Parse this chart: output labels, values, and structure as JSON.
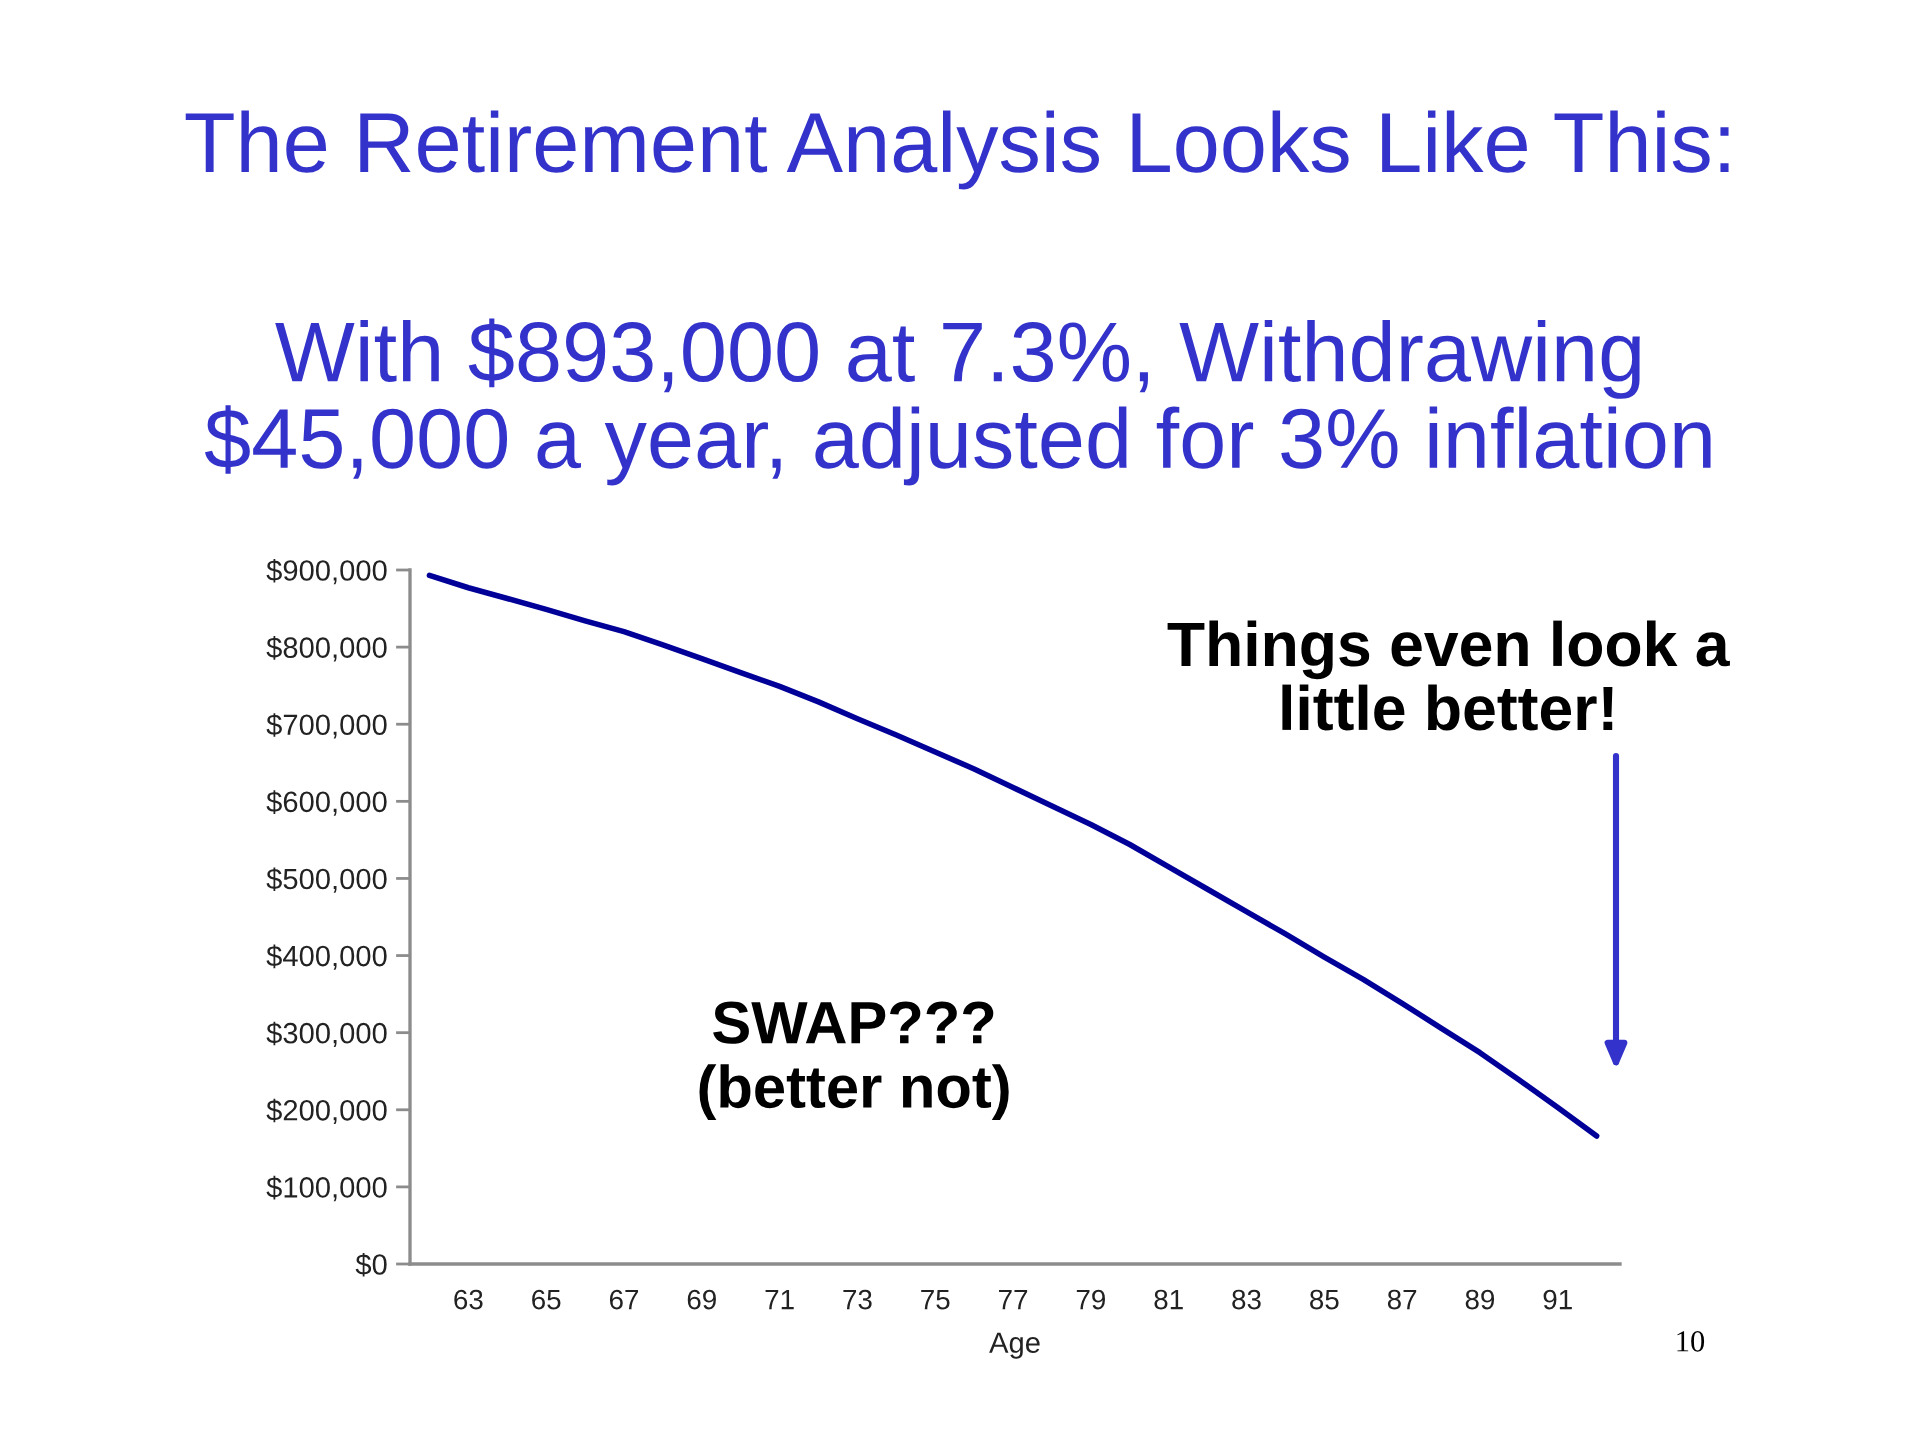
{
  "chart_data": {
    "type": "line",
    "title": "The Retirement Analysis Looks Like This:",
    "subtitle": "With $893,000 at 7.3%, Withdrawing\n$45,000 a year, adjusted for 3% inflation",
    "xlabel": "Age",
    "x": [
      62,
      63,
      64,
      65,
      66,
      67,
      68,
      69,
      70,
      71,
      72,
      73,
      74,
      75,
      76,
      77,
      78,
      79,
      80,
      81,
      82,
      83,
      84,
      85,
      86,
      87,
      88,
      89,
      90,
      91,
      92
    ],
    "series": [
      {
        "color": "#000099",
        "values": [
          893000,
          877000,
          863000,
          849000,
          834000,
          820000,
          803000,
          785000,
          767000,
          749000,
          729000,
          707000,
          686000,
          664000,
          642000,
          618000,
          594000,
          570000,
          544000,
          515000,
          486000,
          457000,
          428000,
          398000,
          369000,
          338000,
          306000,
          274000,
          239000,
          203000,
          166000
        ]
      }
    ],
    "xlim": [
      61.5,
      92.6
    ],
    "xticks": [
      63,
      65,
      67,
      69,
      71,
      73,
      75,
      77,
      79,
      81,
      83,
      85,
      87,
      89,
      91
    ],
    "ylim": [
      0,
      900000
    ],
    "yticks": [
      {
        "value": 0,
        "label": "$0"
      },
      {
        "value": 100000,
        "label": "$100,000"
      },
      {
        "value": 200000,
        "label": "$200,000"
      },
      {
        "value": 300000,
        "label": "$300,000"
      },
      {
        "value": 400000,
        "label": "$400,000"
      },
      {
        "value": 500000,
        "label": "$500,000"
      },
      {
        "value": 600000,
        "label": "$600,000"
      },
      {
        "value": 700000,
        "label": "$700,000"
      },
      {
        "value": 800000,
        "label": "$800,000"
      },
      {
        "value": 900000,
        "label": "$900,000"
      }
    ],
    "marker": "none",
    "line_style": "solid",
    "annotations": [
      "Things even look a\nlittle better!",
      "SWAP???\n(better not)",
      "10"
    ]
  }
}
